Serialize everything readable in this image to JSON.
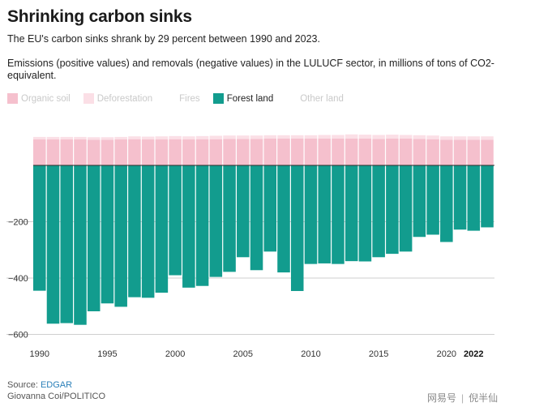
{
  "header": {
    "title": "Shrinking carbon sinks",
    "subtitle": "The EU's carbon sinks shrank by 29 percent between 1990 and 2023.",
    "description": "Emissions (positive values) and removals (negative values) in the LULUCF sector, in millions of tons of CO2-equivalent."
  },
  "legend": [
    {
      "label": "Organic soil",
      "color": "#f5c0cd",
      "active": false
    },
    {
      "label": "Deforestation",
      "color": "#fbdfe6",
      "active": false
    },
    {
      "label": "Fires",
      "color": "#ffffff",
      "active": false
    },
    {
      "label": "Forest land",
      "color": "#129c8e",
      "active": true
    },
    {
      "label": "Other land",
      "color": "#ffffff",
      "active": false
    }
  ],
  "chart_data": {
    "type": "bar",
    "title": "Shrinking carbon sinks",
    "xlabel": "",
    "ylabel": "",
    "ylim": [
      -600,
      140
    ],
    "yticks": [
      -200,
      -400,
      -600
    ],
    "x_tick_labels": [
      "1990",
      "1995",
      "2000",
      "2005",
      "2010",
      "2015",
      "2020",
      "2022"
    ],
    "x_tick_years": [
      1990,
      1995,
      2000,
      2005,
      2010,
      2015,
      2020,
      2022
    ],
    "bold_tick": "2022",
    "categories": [
      1990,
      1991,
      1992,
      1993,
      1994,
      1995,
      1996,
      1997,
      1998,
      1999,
      2000,
      2001,
      2002,
      2003,
      2004,
      2005,
      2006,
      2007,
      2008,
      2009,
      2010,
      2011,
      2012,
      2013,
      2014,
      2015,
      2016,
      2017,
      2018,
      2019,
      2020,
      2021,
      2022,
      2023
    ],
    "series": [
      {
        "name": "Forest land",
        "color": "#129c8e",
        "values": [
          -445,
          -562,
          -560,
          -566,
          -518,
          -490,
          -502,
          -468,
          -470,
          -452,
          -390,
          -434,
          -428,
          -396,
          -378,
          -326,
          -372,
          -306,
          -380,
          -446,
          -350,
          -348,
          -350,
          -340,
          -341,
          -326,
          -314,
          -306,
          -254,
          -246,
          -272,
          -228,
          -232,
          -220
        ]
      },
      {
        "name": "Organic soil",
        "color": "#f5c0cd",
        "values": [
          92,
          92,
          92,
          92,
          91,
          91,
          92,
          93,
          92,
          92,
          93,
          92,
          93,
          93,
          94,
          94,
          94,
          95,
          95,
          95,
          95,
          95,
          95,
          95,
          95,
          94,
          95,
          95,
          94,
          93,
          91,
          91,
          91,
          91
        ]
      },
      {
        "name": "Deforestation",
        "color": "#fbdfe6",
        "values": [
          9,
          9,
          9,
          9,
          9,
          9,
          9,
          10,
          10,
          11,
          11,
          11,
          11,
          12,
          12,
          12,
          12,
          12,
          12,
          12,
          12,
          13,
          13,
          15,
          14,
          14,
          14,
          13,
          13,
          13,
          12,
          12,
          12,
          12
        ]
      }
    ]
  },
  "footer": {
    "source_label": "Source: ",
    "source_name": "EDGAR",
    "credit": "Giovanna Coi/POLITICO"
  },
  "watermark": {
    "left": "网易号",
    "separator": "|",
    "right": "倪半仙"
  }
}
